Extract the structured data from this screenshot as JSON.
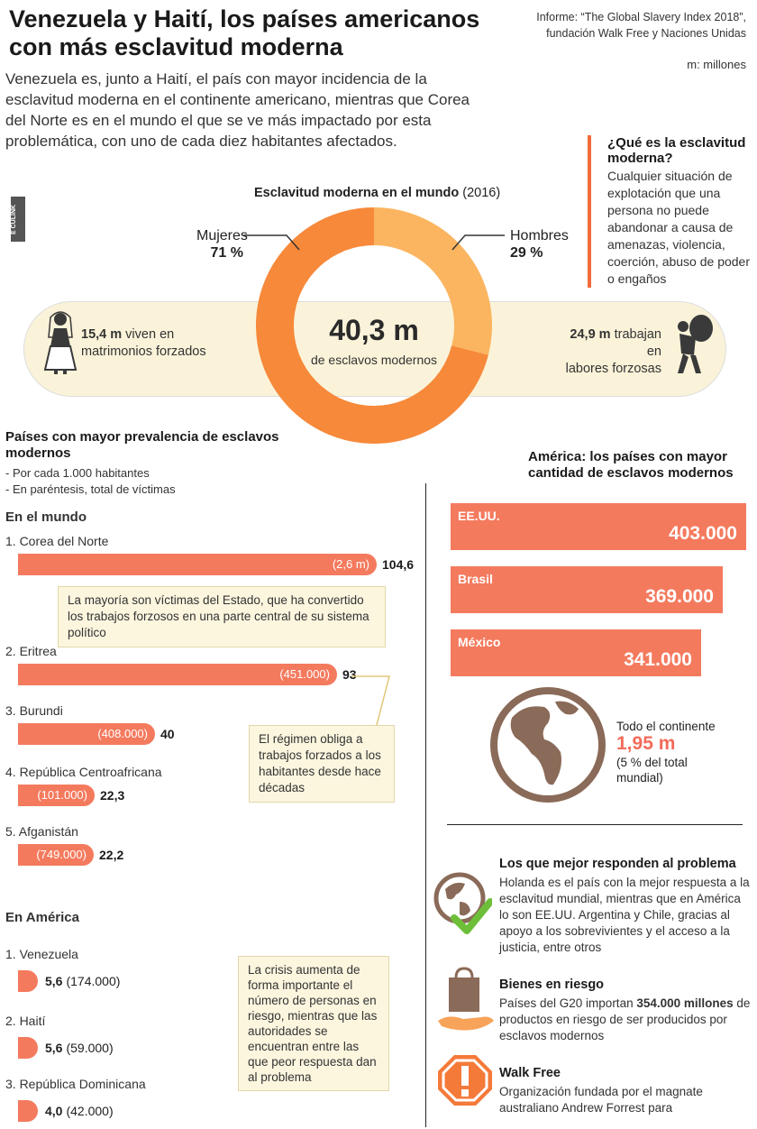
{
  "header": {
    "title_line1": "Venezuela y Haití, los países americanos",
    "title_line2": "con más esclavitud moderna",
    "source_line1": "Informe: “The Global Slavery Index 2018”,",
    "source_line2": "fundación Walk Free y Naciones Unidas",
    "units": "m: millones",
    "intro": "Venezuela es, junto a Haití, el país con mayor incidencia de la esclavitud moderna en el continente americano, mientras que Corea del Norte es en el mundo el que se ve más impactado por esta problemática, con uno de cada diez habitantes afectados.",
    "watermark": "E CULINK"
  },
  "definition": {
    "title": "¿Qué es la esclavitud moderna?",
    "text": "Cualquier situación de explotación que una persona no puede abandonar a causa de amenazas, violencia, coerción, abuso de poder o engaños"
  },
  "donut": {
    "title_bold": "Esclavitud moderna en el mundo",
    "title_year": "(2016)",
    "women_label": "Mujeres",
    "women_value": "71 %",
    "women_pct": 71,
    "men_label": "Hombres",
    "men_value": "29 %",
    "men_pct": 29,
    "total_value": "40,3 m",
    "total_label": "de esclavos modernos",
    "color_women": "#f7893a",
    "color_men": "#fbb560"
  },
  "stats": {
    "left_bold": "15,4 m",
    "left_text1": " viven en",
    "left_text2": "matrimonios forzados",
    "right_bold": "24,9 m",
    "right_text1": " trabajan en",
    "right_text2": "labores forzosas"
  },
  "prevalence": {
    "title": "Países con mayor prevalencia de esclavos modernos",
    "note1": "- Por cada 1.000 habitantes",
    "note2": "- En paréntesis, total de víctimas",
    "world_heading": "En el mundo",
    "world": [
      {
        "name": "1. Corea del Norte",
        "inner": "(2,6 m)",
        "value": "104,6",
        "rate": 104.6
      },
      {
        "name": "2. Eritrea",
        "inner": "(451.000)",
        "value": "93",
        "rate": 93
      },
      {
        "name": "3. Burundi",
        "inner": "(408.000)",
        "value": "40",
        "rate": 40
      },
      {
        "name": "4. República Centroafricana",
        "inner": "(101.000)",
        "value": "22,3",
        "rate": 22.3
      },
      {
        "name": "5. Afganistán",
        "inner": "(749.000)",
        "value": "22,2",
        "rate": 22.2
      }
    ],
    "note_korea": "La mayoría son víctimas del Estado, que ha convertido los trabajos forzosos en una parte central de su sistema político",
    "note_eritrea": "El régimen obliga a trabajos forzados a los habitantes desde hace décadas",
    "america_heading": "En América",
    "america": [
      {
        "name": "1. Venezuela",
        "value": "5,6",
        "total": "(174.000)"
      },
      {
        "name": "2. Haití",
        "value": "5,6",
        "total": "(59.000)"
      },
      {
        "name": "3. República Dominicana",
        "value": "4,0",
        "total": "(42.000)"
      }
    ],
    "note_venezuela": "La crisis aumenta de forma importante el número de personas en riesgo, mientras que las autoridades se encuentran entre las que peor respuesta dan al problema"
  },
  "america_top": {
    "title": "América: los países con mayor cantidad de esclavos modernos",
    "items": [
      {
        "name": "EE.UU.",
        "value": "403.000"
      },
      {
        "name": "Brasil",
        "value": "369.000"
      },
      {
        "name": "México",
        "value": "341.000"
      }
    ],
    "continent_label": "Todo el continente",
    "continent_value": "1,95 m",
    "continent_note": "(5 % del total mundial)"
  },
  "response": {
    "title": "Los que mejor responden al problema",
    "text": "Holanda es el país con la mejor respuesta a la esclavitud mundial, mientras que en América lo son EE.UU. Argentina y Chile, gracias al apoyo a los sobrevivientes y el acceso a la justicia, entre otros"
  },
  "goods": {
    "title": "Bienes en riesgo",
    "text_pre": "Países del G20 importan ",
    "text_bold": "354.000 millones",
    "text_post": " de productos en riesgo de ser producidos por esclavos modernos"
  },
  "walkfree": {
    "title": "Walk Free",
    "text": "Organización fundada por el magnate australiano Andrew Forrest para"
  }
}
